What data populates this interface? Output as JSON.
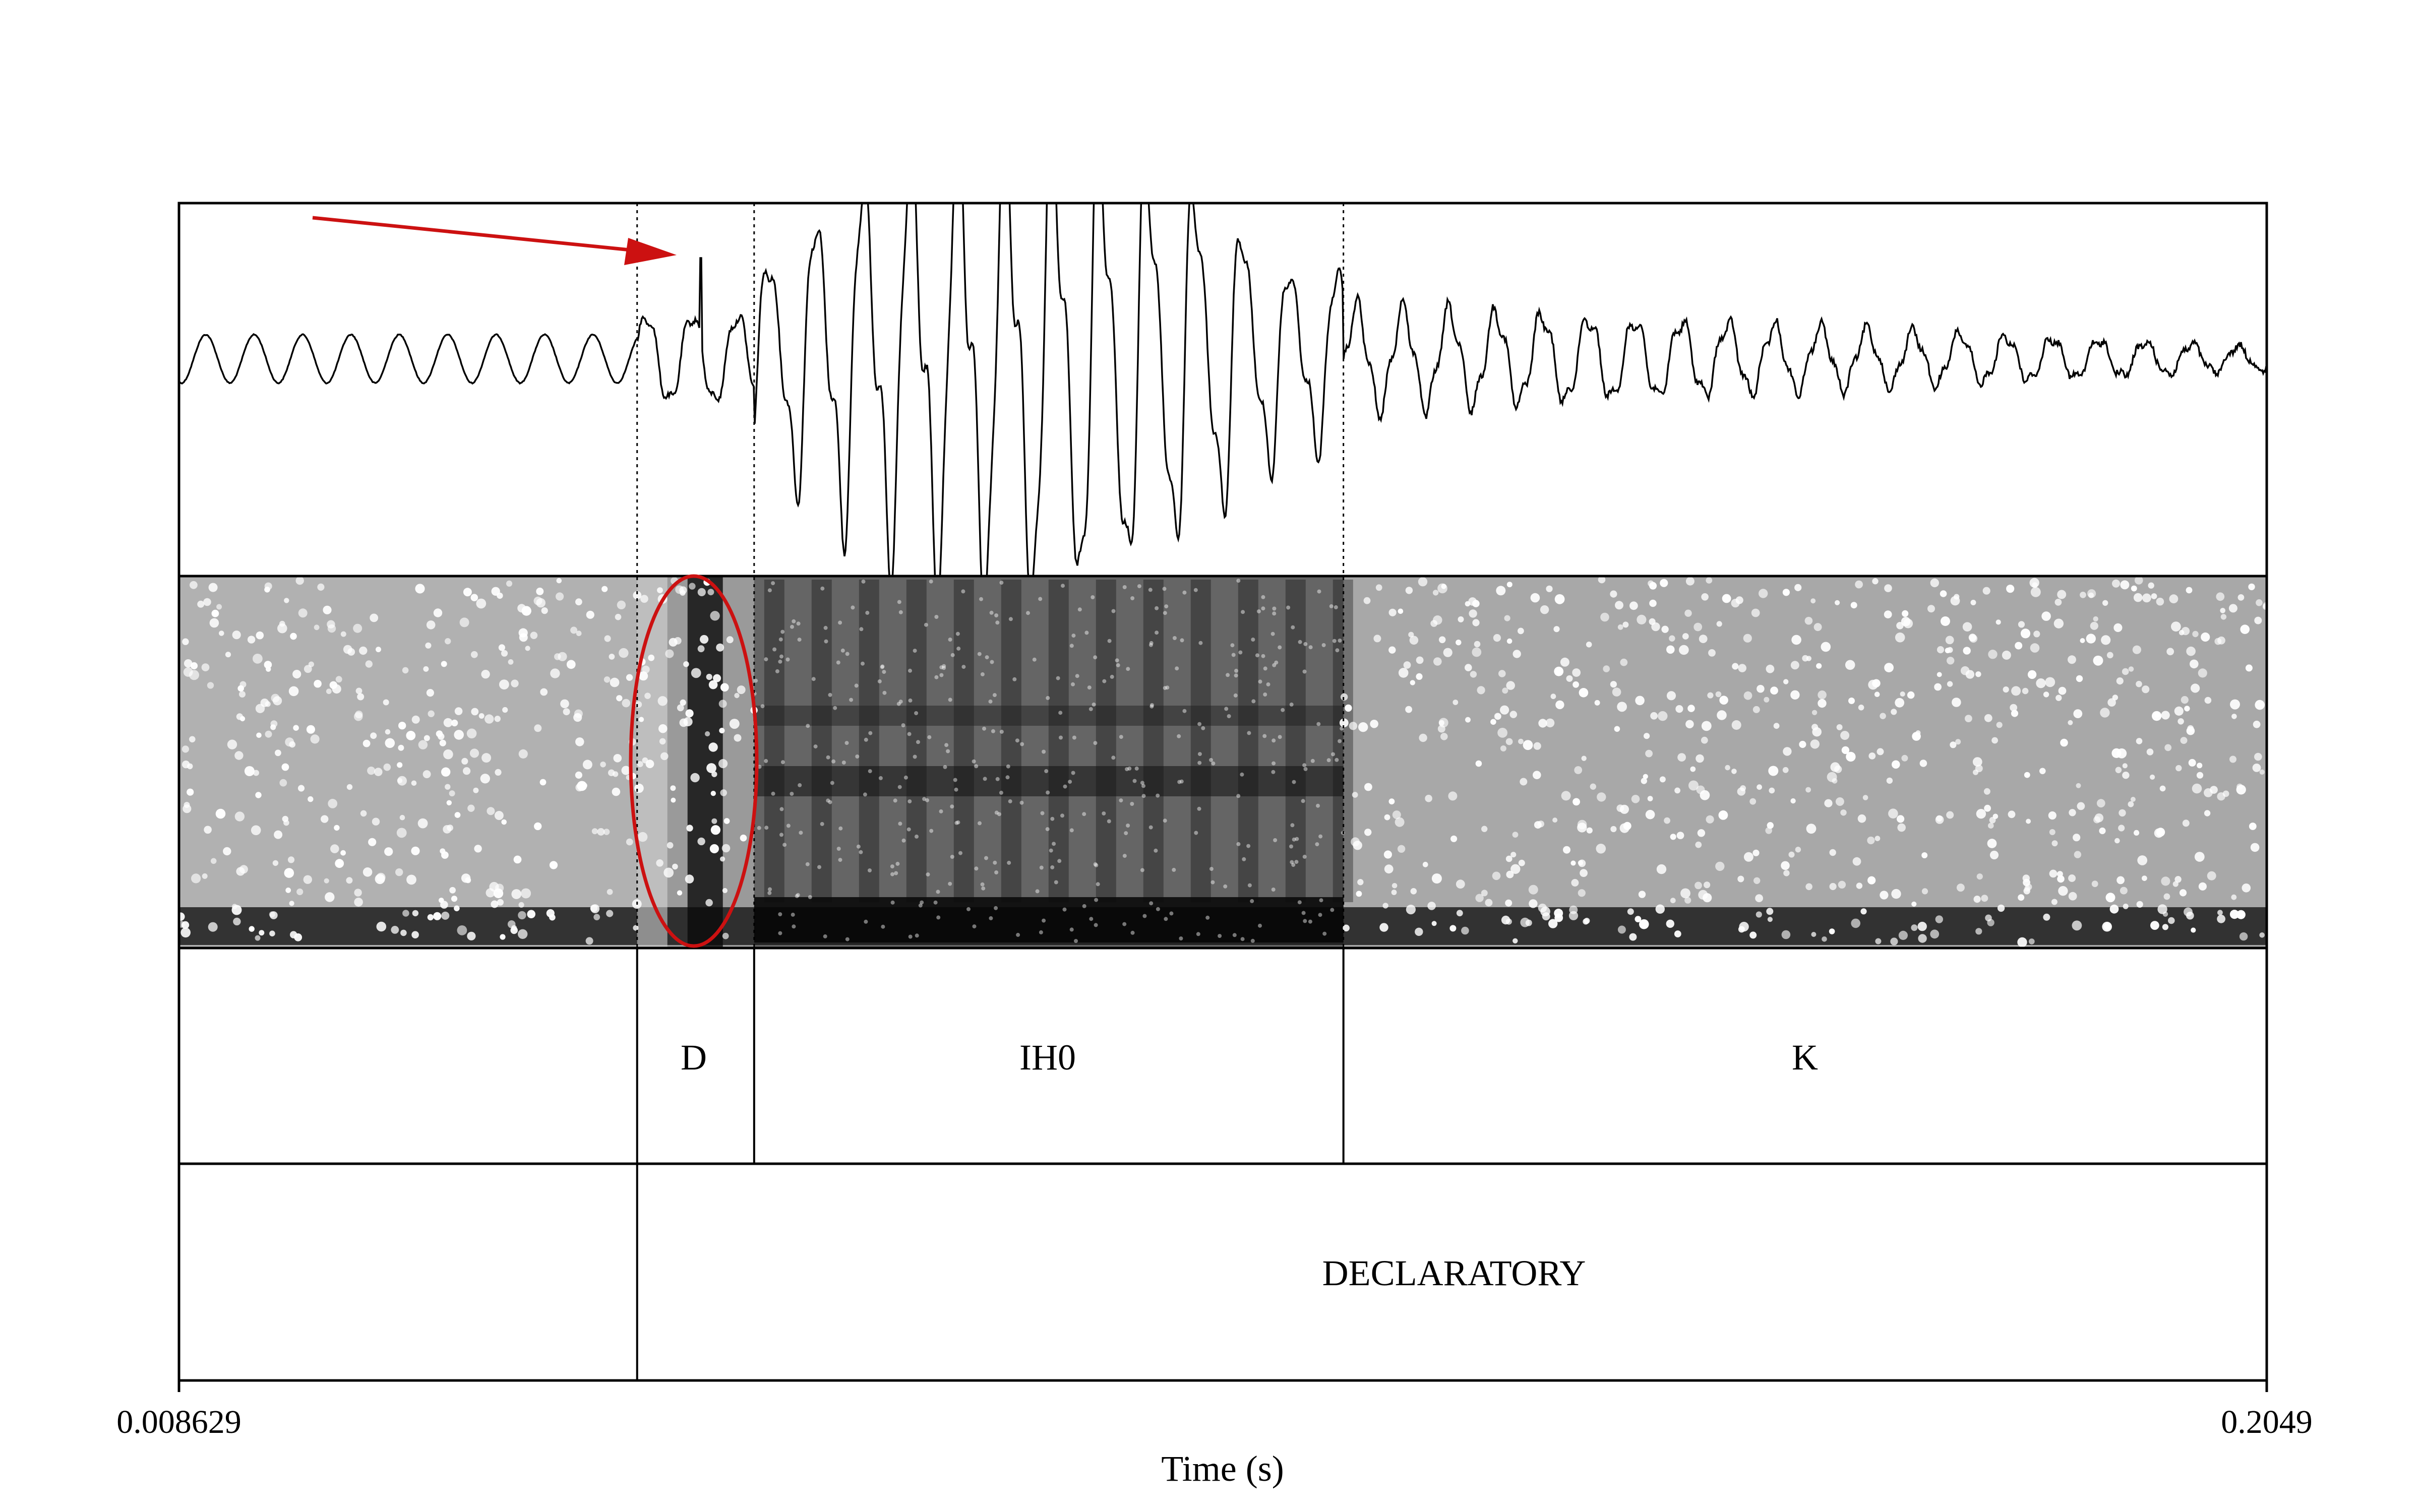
{
  "tiers": {
    "phones": [
      "",
      "D",
      "IH0",
      "K"
    ],
    "sentence": [
      "",
      "DECLARATORY"
    ]
  },
  "axis": {
    "start_label": "0.008629",
    "end_label": "0.2049",
    "xlabel": "Time (s)",
    "start_s": 0.008629,
    "end_s": 0.2049
  },
  "boundaries_s": {
    "d_start": 0.0517,
    "d_end": 0.0627,
    "ih0_end": 0.1181
  },
  "annotations": {
    "arrow_color": "#cc1111",
    "ellipse_color": "#cc1111",
    "arrow_target": "D burst onset",
    "ellipse_target": "D burst in spectrogram"
  }
}
